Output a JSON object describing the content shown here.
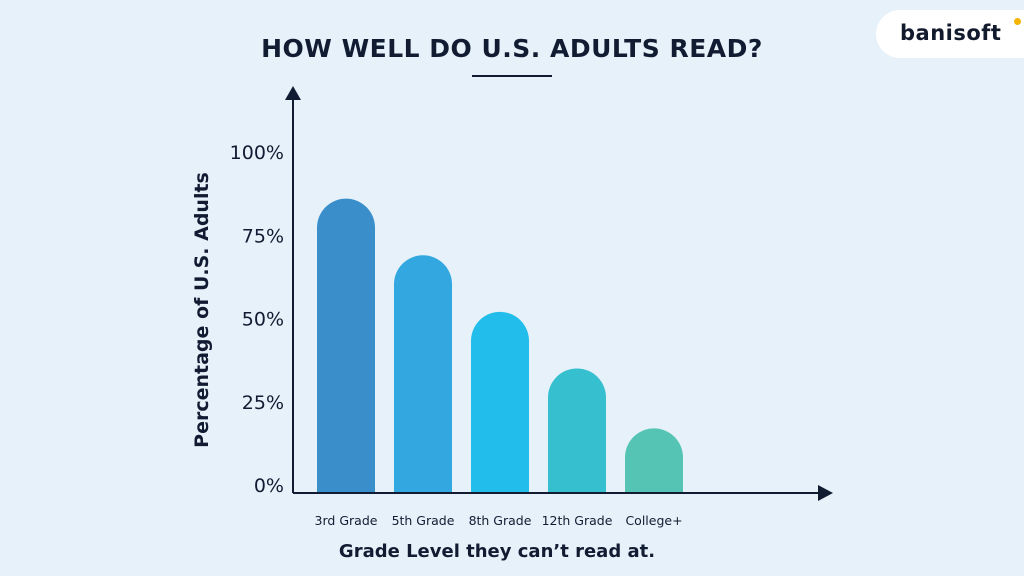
{
  "header": {
    "title": "HOW WELL DO U.S. ADULTS READ?"
  },
  "brand": {
    "name": "banisoft",
    "accent_color": "#f5b400"
  },
  "chart_data": {
    "type": "bar",
    "title": "HOW WELL DO U.S. ADULTS READ?",
    "xlabel": "Grade Level they can’t read at.",
    "ylabel": "Percentage of U.S. Adults",
    "categories": [
      "3rd Grade",
      "5th Grade",
      "8th Grade",
      "12th Grade",
      "College+"
    ],
    "values": [
      86,
      69,
      52,
      35,
      17
    ],
    "colors": [
      "#3a8fcb",
      "#33a8e0",
      "#22bdea",
      "#35bfcf",
      "#55c4b5"
    ],
    "yticks": [
      0,
      25,
      50,
      75,
      100
    ],
    "ytick_labels": [
      "0%",
      "25%",
      "50%",
      "75%",
      "100%"
    ],
    "ylim": [
      0,
      100
    ],
    "grid": false,
    "legend": "none"
  }
}
